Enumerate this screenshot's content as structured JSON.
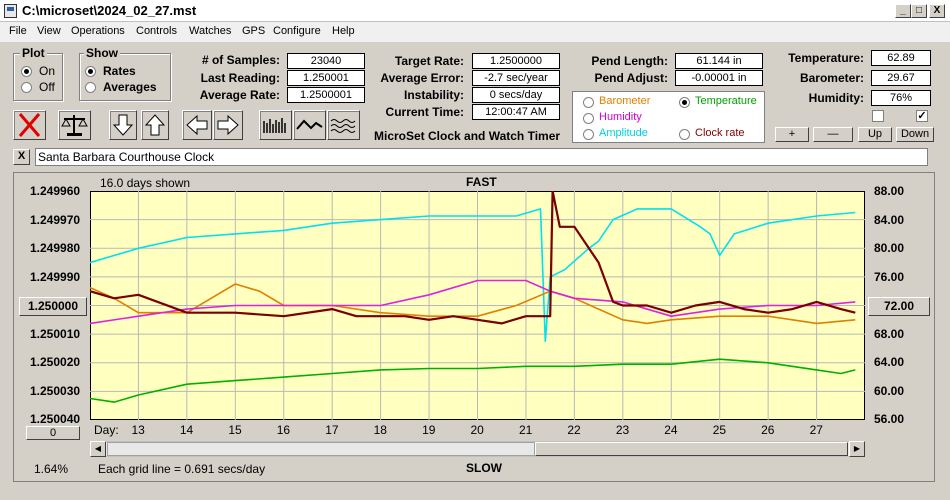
{
  "window": {
    "title": "C:\\microset\\2024_02_27.mst",
    "min": "_",
    "max": "□",
    "close": "X"
  },
  "menu": [
    "File",
    "View",
    "Operations",
    "Controls",
    "Watches",
    "GPS",
    "Configure",
    "Help"
  ],
  "plot": {
    "title": "Plot",
    "options": [
      "On",
      "Off"
    ],
    "selected": "On"
  },
  "show": {
    "title": "Show",
    "options": [
      "Rates",
      "Averages"
    ],
    "selected": "Rates"
  },
  "stats": {
    "samples_label": "# of Samples:",
    "samples": "23040",
    "last_label": "Last Reading:",
    "last": "1.250001",
    "avg_label": "Average Rate:",
    "avg": "1.2500001"
  },
  "target": {
    "rate_label": "Target Rate:",
    "rate": "1.2500000",
    "error_label": "Average Error:",
    "error": "-2.7 sec/year",
    "instab_label": "Instability:",
    "instab": "0 secs/day",
    "time_label": "Current Time:",
    "time": "12:00:47 AM"
  },
  "pend": {
    "length_label": "Pend Length:",
    "length": "61.144 in",
    "adjust_label": "Pend Adjust:",
    "adjust": "-0.00001 in"
  },
  "env": {
    "temp_label": "Temperature:",
    "temp": "62.89",
    "baro_label": "Barometer:",
    "baro": "29.67",
    "hum_label": "Humidity:",
    "hum": "76%"
  },
  "sensor_options": [
    {
      "label": "Barometer",
      "color": "#e08000",
      "selected": false
    },
    {
      "label": "Temperature",
      "color": "#00a000",
      "selected": true
    },
    {
      "label": "Humidity",
      "color": "#d000d0",
      "selected": false
    },
    {
      "label": "Clock rate",
      "color": "#800000",
      "selected": false
    },
    {
      "label": "Amplitude",
      "color": "#00d0e0",
      "selected": false
    }
  ],
  "app_title": "MicroSet Clock and Watch Timer",
  "small_buttons": [
    "+",
    "—",
    "Up",
    "Down"
  ],
  "clock_name": "Santa Barbara Courthouse Clock",
  "close_x": "X",
  "chart_data": {
    "type": "line",
    "days_shown": "16.0 days shown",
    "top_label": "FAST",
    "bottom_label": "SLOW",
    "grid_note": "Each grid line = 0.691 secs/day",
    "percent": "1.64%",
    "left_ticks": [
      "1.249960",
      "1.249970",
      "1.249980",
      "1.249990",
      "1.250000",
      "1.250010",
      "1.250020",
      "1.250030",
      "1.250040"
    ],
    "right_ticks": [
      "88.00",
      "84.00",
      "80.00",
      "76.00",
      "72.00",
      "68.00",
      "64.00",
      "60.00",
      "56.00"
    ],
    "left_button": "1.250000",
    "right_button": "72.00",
    "zero_button": "0",
    "day_label": "Day:",
    "x_ticks": [
      "13",
      "14",
      "15",
      "16",
      "17",
      "18",
      "19",
      "20",
      "21",
      "22",
      "23",
      "24",
      "25",
      "26",
      "27"
    ],
    "xlim": [
      12.0,
      28.0
    ],
    "ylim_right": [
      56.0,
      88.0
    ],
    "series": [
      {
        "color": "#00e0f0",
        "x": [
          12.0,
          13,
          14,
          15,
          16,
          17,
          18,
          19,
          20,
          20.8,
          21.3,
          21.4,
          21.5,
          21.8,
          22.3,
          22.5,
          22.8,
          23.3,
          24,
          24.6,
          24.8,
          25.0,
          25.3,
          26,
          27,
          27.8
        ],
        "y": [
          78,
          80,
          81.5,
          82,
          82.5,
          83.5,
          84,
          84.5,
          84.5,
          84.5,
          85.5,
          67,
          76,
          77,
          80,
          81,
          84,
          85.5,
          85.5,
          83,
          82,
          79,
          82,
          83.5,
          84.5,
          85
        ]
      },
      {
        "color": "#e08000",
        "x": [
          12.0,
          12.5,
          13,
          14,
          14.5,
          15,
          15.5,
          16,
          17,
          18,
          19,
          20,
          20.8,
          21.5,
          22,
          22.5,
          23,
          23.5,
          24,
          25,
          26,
          27,
          27.8
        ],
        "y": [
          74.5,
          73,
          71,
          71,
          73,
          75,
          74,
          72,
          72,
          71,
          70.5,
          70.5,
          72,
          74,
          73,
          71.5,
          70,
          69.5,
          70,
          70.5,
          70.5,
          69.5,
          70
        ]
      },
      {
        "color": "#e020e0",
        "x": [
          12.0,
          13,
          14,
          15,
          16,
          17,
          18,
          19,
          20,
          21,
          21.5,
          22,
          23,
          24,
          25,
          26,
          27,
          27.8
        ],
        "y": [
          69.5,
          70.5,
          71.5,
          72,
          72,
          72,
          72,
          73.5,
          75.5,
          75.5,
          74,
          73,
          72.5,
          70.5,
          71.5,
          72,
          72,
          72.5
        ]
      },
      {
        "color": "#00b000",
        "x": [
          12.0,
          12.5,
          13,
          14,
          15,
          16,
          17,
          18,
          19,
          20,
          21,
          22,
          23,
          24,
          25,
          26,
          27,
          27.5,
          27.8
        ],
        "y": [
          59,
          58.5,
          59.5,
          61,
          61.5,
          62,
          62.5,
          63,
          63.2,
          63.2,
          63.5,
          63.5,
          63.8,
          63.8,
          64.5,
          64,
          63,
          62.5,
          63
        ]
      },
      {
        "color": "#7a0000",
        "x": [
          12.0,
          12.5,
          13,
          14,
          15,
          16,
          17,
          17.5,
          18,
          18.5,
          19,
          19.5,
          20,
          20.5,
          21.0,
          21.3,
          21.5,
          21.55,
          21.7,
          22,
          22.5,
          22.8,
          23,
          23.5,
          24,
          24.5,
          25,
          25.5,
          26,
          26.5,
          27,
          27.5,
          27.8
        ],
        "y": [
          74,
          73,
          73.5,
          71,
          71,
          70.5,
          71.5,
          70.5,
          70.5,
          70.5,
          70,
          70.5,
          70,
          69.5,
          70.5,
          70.5,
          70.5,
          88,
          83,
          83,
          78,
          72.5,
          72,
          72,
          71,
          72,
          72.5,
          71.5,
          71,
          71.5,
          72.5,
          71.5,
          71
        ]
      }
    ]
  }
}
